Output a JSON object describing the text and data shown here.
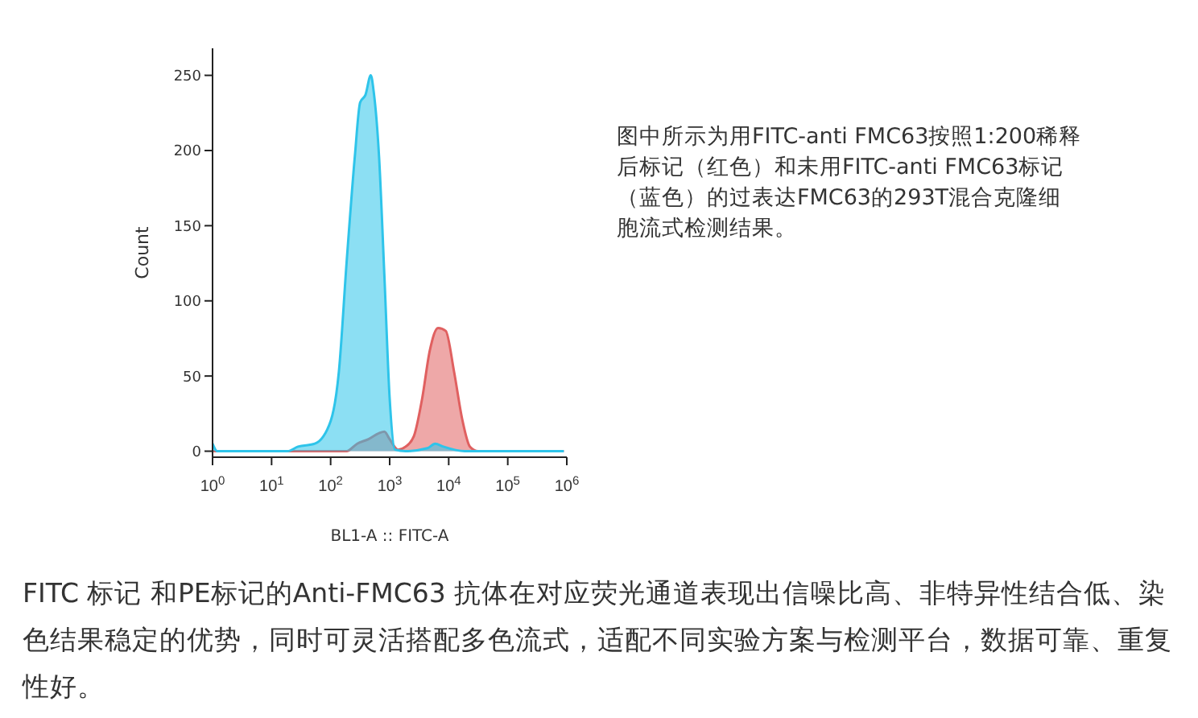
{
  "chart_data": {
    "type": "area",
    "xlabel": "BL1-A :: FITC-A",
    "ylabel": "Count",
    "log": "x",
    "xlim": [
      1,
      1000000
    ],
    "xticks": [
      {
        "value": 1,
        "label": "10$^{0}$"
      },
      {
        "value": 10,
        "label": "10$^{1}$"
      },
      {
        "value": 100,
        "label": "10$^{2}$"
      },
      {
        "value": 1000,
        "label": "10$^{3}$"
      },
      {
        "value": 10000,
        "label": "10$^{4}$"
      },
      {
        "value": 100000,
        "label": "10$^{5}$"
      },
      {
        "value": 1000000,
        "label": "10$^{6}$"
      }
    ],
    "ylim": [
      -4,
      268
    ],
    "yticks": [
      0,
      50,
      100,
      150,
      200,
      250
    ],
    "series": [
      {
        "color": "#e06060",
        "x": [
          1,
          186,
          282,
          437,
          661,
          813,
          1000,
          1380,
          1862,
          2570,
          3548,
          4786,
          6607,
          8913,
          12300,
          16980,
          22900,
          31620,
          891000
        ],
        "values": [
          0,
          0,
          5,
          8,
          12,
          13,
          8,
          1,
          3,
          10,
          35,
          67,
          82,
          80,
          53,
          21,
          3,
          0,
          0
        ]
      },
      {
        "color": "#2ec4ea",
        "x": [
          1,
          1.2,
          18.6,
          28,
          54,
          100,
          138,
          186,
          257,
          316,
          389,
          479,
          537,
          661,
          813,
          1000,
          1230,
          1862,
          4365,
          5888,
          8128,
          18620,
          891000
        ],
        "values": [
          5,
          0,
          0,
          3,
          5,
          20,
          53,
          125,
          196,
          232,
          237,
          250,
          239,
          196,
          117,
          35,
          1,
          0,
          2,
          5,
          3,
          0,
          0
        ]
      }
    ],
    "annotations": [
      "图中所示为用FITC-anti FMC63按照1:200稀释后标记（红色）和未用FITC-anti FMC63标记（蓝色）的过表达FMC63的293T混合克隆细胞流式检测结果。",
      "FITC 标记 和PE标记的Anti-FMC63 抗体在对应荧光通道表现出信噪比高、非特异性结合低、染色结果稳定的优势，同时可灵活搭配多色流式，适配不同实验方案与检测平台，数据可靠、重复性好。"
    ]
  }
}
